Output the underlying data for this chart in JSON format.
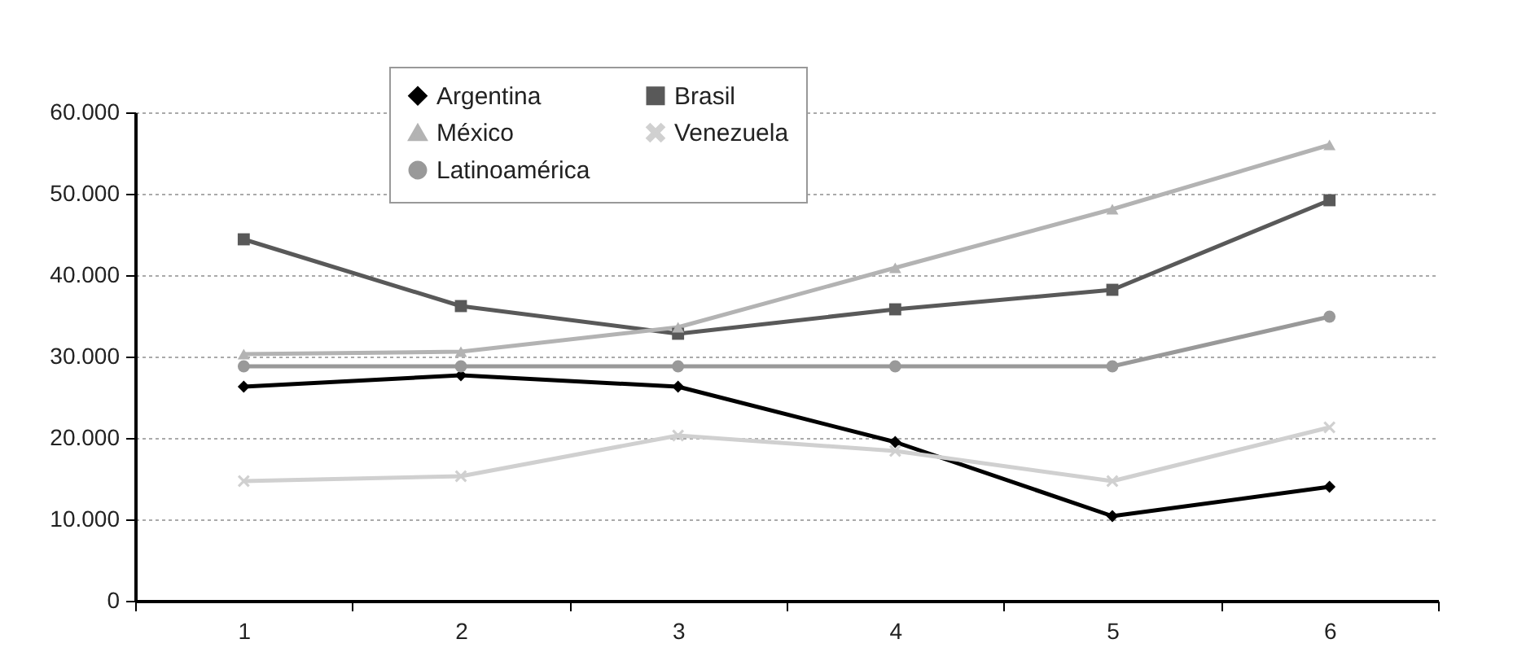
{
  "chart_data": {
    "type": "line",
    "categories": [
      "1",
      "2",
      "3",
      "4",
      "5",
      "6"
    ],
    "series": [
      {
        "name": "Argentina",
        "color": "#000000",
        "marker": "diamond",
        "values": [
          26300,
          27700,
          26300,
          19500,
          10400,
          14000
        ]
      },
      {
        "name": "Brasil",
        "color": "#595959",
        "marker": "square",
        "values": [
          44400,
          36200,
          32800,
          35800,
          38200,
          49200
        ]
      },
      {
        "name": "México",
        "color": "#b3b3b3",
        "marker": "triangle",
        "values": [
          30300,
          30600,
          33600,
          40900,
          48100,
          56000
        ]
      },
      {
        "name": "Venezuela",
        "color": "#d0d0d0",
        "marker": "cross",
        "values": [
          14700,
          15300,
          20300,
          18400,
          14700,
          21300
        ]
      },
      {
        "name": "Latinoamérica",
        "color": "#999999",
        "marker": "circle",
        "values": [
          28800,
          28800,
          28800,
          28800,
          28800,
          34900
        ]
      }
    ],
    "ylim": [
      0,
      60000
    ],
    "yticks": [
      0,
      {
        "value": 10000,
        "label": "10.000"
      },
      {
        "value": 20000,
        "label": "20.000"
      },
      {
        "value": 30000,
        "label": "30.000"
      },
      {
        "value": 40000,
        "label": "40.000"
      },
      {
        "value": 50000,
        "label": "50.000"
      },
      {
        "value": 60000,
        "label": "60.000"
      }
    ],
    "grid": "y",
    "legend": "top",
    "line_style": "solid"
  }
}
